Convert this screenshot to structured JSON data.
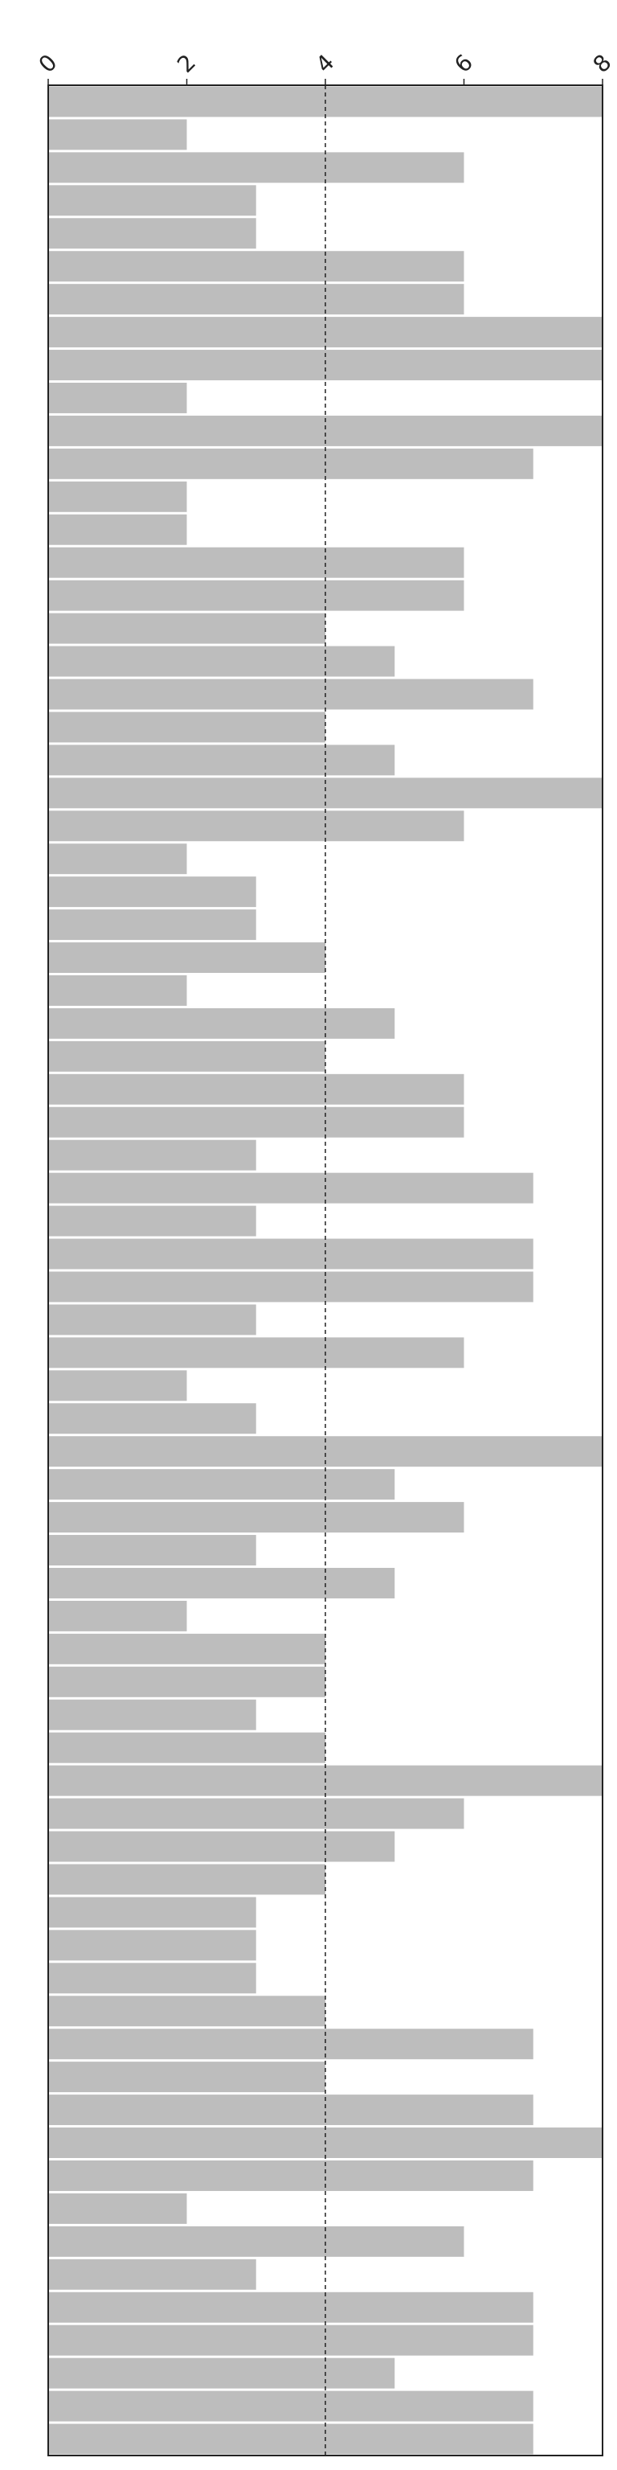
{
  "chart_data": {
    "type": "bar",
    "orientation": "horizontal",
    "values": [
      8,
      2,
      6,
      3,
      3,
      6,
      6,
      8,
      8,
      2,
      8,
      7,
      2,
      2,
      6,
      6,
      4,
      5,
      7,
      4,
      5,
      8,
      6,
      2,
      3,
      3,
      4,
      2,
      5,
      4,
      6,
      6,
      3,
      7,
      3,
      7,
      7,
      3,
      6,
      2,
      3,
      8,
      5,
      6,
      3,
      5,
      2,
      4,
      4,
      3,
      4,
      8,
      6,
      5,
      4,
      3,
      3,
      3,
      4,
      7,
      4,
      7,
      8,
      7,
      2,
      6,
      3,
      7,
      7,
      5,
      7,
      7
    ],
    "xlim": [
      0,
      8
    ],
    "xticks": [
      0,
      2,
      4,
      6,
      8
    ],
    "xtick_labels": [
      "0",
      "2",
      "4",
      "6",
      "8"
    ],
    "x_axis_position": "top",
    "reference_line": {
      "x": 4,
      "style": "dashed"
    },
    "title": "",
    "xlabel": "",
    "ylabel": "",
    "grid": false,
    "legend": "none",
    "colors": {
      "bar": "#bdbdbd",
      "axis": "#222222",
      "background": "#ffffff"
    }
  }
}
